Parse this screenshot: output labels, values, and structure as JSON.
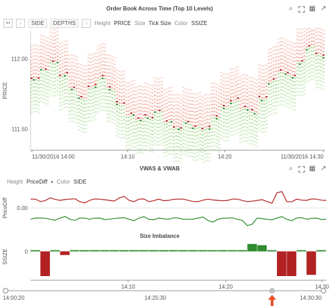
{
  "panel1": {
    "title": "Order Book Across Time (Top 10 Levels)",
    "toolbar": {
      "side": "SIDE",
      "depths": "DEPTHS",
      "height_label": "Height",
      "height_value": "PRICE",
      "size_label": "Size",
      "size_value": "Tick Size",
      "color_label": "Color",
      "color_value": "SSIZE"
    },
    "ylabel": "PRICE"
  },
  "panel2": {
    "title": "VWAS & VWAB",
    "height_label": "Height",
    "height_value": "PriceDiff",
    "color_label": "Color",
    "color_value": "SIDE",
    "ylabel": "PriceDiff"
  },
  "panel3": {
    "title": "Size Imbalance",
    "ylabel": "SSIZE"
  },
  "timeline": {
    "start": "14:00:20",
    "mid": "14:25:30",
    "end": "14:30:30"
  },
  "colors": {
    "ask_dark": "#b22222",
    "ask_light": "#f2b3a8",
    "bid_dark": "#2e8b2e",
    "bid_light": "#b9e0a5",
    "accent": "#e8532b"
  },
  "chart_data": [
    {
      "type": "heatmap",
      "title": "Order Book Across Time (Top 10 Levels)",
      "ylabel": "PRICE",
      "x_ticks": [
        "11/30/2016 14:00",
        "14:10",
        "14:20",
        "11/30/2016 14:30"
      ],
      "y_ticks": [
        "112.00",
        "111.50"
      ],
      "ylim": [
        111.35,
        112.2
      ],
      "x": [
        0,
        1,
        2,
        3,
        4,
        5,
        6,
        7,
        8,
        9,
        10,
        11,
        12,
        13,
        14,
        15,
        16,
        17,
        18,
        19,
        20,
        21,
        22,
        23,
        24,
        25,
        26,
        27,
        28,
        29,
        30
      ],
      "mid_price": [
        111.85,
        111.92,
        111.98,
        111.88,
        111.78,
        111.72,
        111.8,
        111.86,
        111.78,
        111.68,
        111.6,
        111.56,
        111.58,
        111.63,
        111.55,
        111.5,
        111.55,
        111.52,
        111.5,
        111.58,
        111.66,
        111.7,
        111.64,
        111.62,
        111.72,
        111.84,
        111.9,
        111.88,
        111.98,
        112.08,
        112.02
      ]
    },
    {
      "type": "line",
      "title": "VWAS & VWAB",
      "ylabel": "PriceDiff",
      "y_ticks": [
        "0.00"
      ],
      "ylim": [
        -0.16,
        0.16
      ],
      "series": [
        {
          "values": [
            0.07,
            0.05,
            0.08,
            0.06,
            0.07,
            0.05,
            0.06,
            0.07,
            0.06,
            0.08,
            0.06,
            0.07,
            0.05,
            0.07,
            0.06,
            0.07,
            0.06,
            0.05,
            0.07,
            0.06,
            0.06,
            0.07,
            0.05,
            0.06,
            0.05,
            0.12,
            0.05,
            0.07,
            0.06,
            0.07,
            0.06
          ]
        },
        {
          "values": [
            -0.09,
            -0.08,
            -0.09,
            -0.08,
            -0.09,
            -0.08,
            -0.09,
            -0.08,
            -0.09,
            -0.08,
            -0.09,
            -0.08,
            -0.09,
            -0.08,
            -0.09,
            -0.08,
            -0.09,
            -0.08,
            -0.1,
            -0.09,
            -0.08,
            -0.09,
            -0.14,
            -0.08,
            -0.09,
            -0.08,
            -0.09,
            -0.08,
            -0.09,
            -0.08,
            -0.09
          ]
        }
      ]
    },
    {
      "type": "bar",
      "title": "Size Imbalance",
      "ylabel": "SSIZE",
      "y_ticks": [
        "0"
      ],
      "x_ticks": [
        "14:10",
        "14:20",
        "14:30"
      ],
      "ylim": [
        -1,
        0.35
      ],
      "values": [
        0.05,
        -1,
        0.05,
        -0.15,
        0.05,
        0.05,
        0.05,
        0.05,
        0.05,
        0.05,
        0.05,
        0.05,
        0.05,
        0.05,
        0.05,
        0.05,
        0.05,
        0.05,
        0.05,
        0.05,
        0.05,
        0.05,
        0.3,
        0.25,
        0.05,
        -1,
        -1,
        0.05,
        -0.95,
        0.05
      ]
    }
  ]
}
